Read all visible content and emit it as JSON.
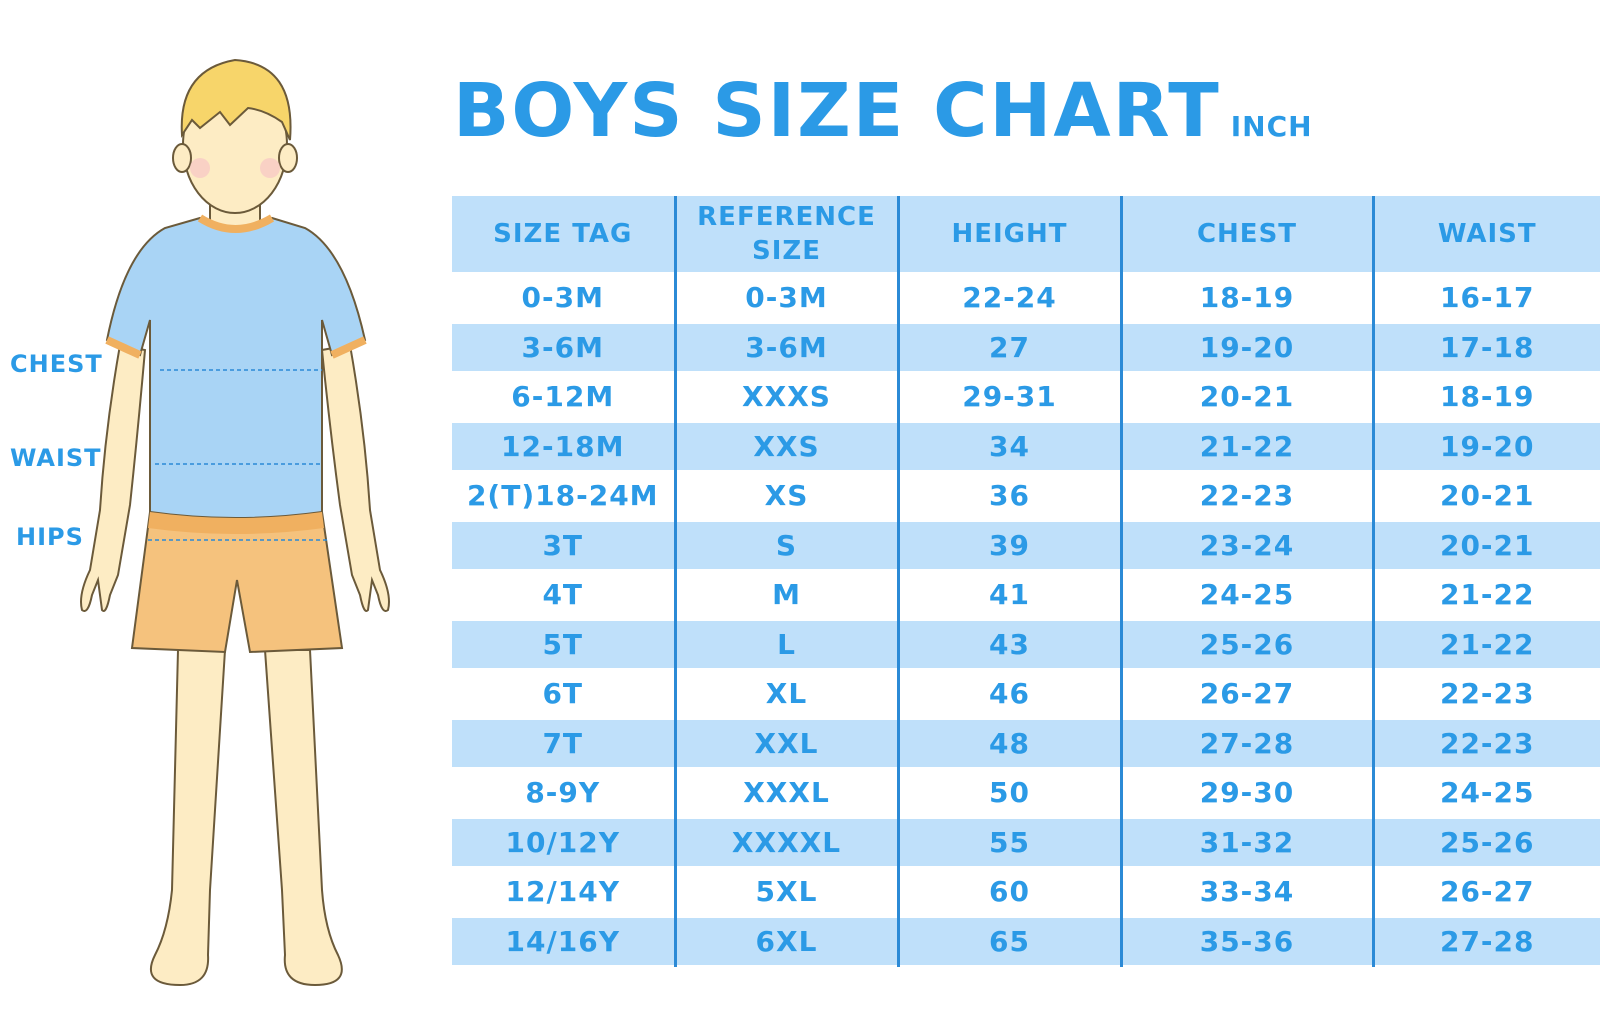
{
  "title": {
    "main": "BOYS SIZE CHART",
    "unit": "INCH"
  },
  "body_labels": {
    "chest": "CHEST",
    "waist": "WAIST",
    "hips": "HIPS"
  },
  "colors": {
    "accent": "#2b9ae6",
    "band": "#bfe0fa",
    "divider": "#2b8ad6",
    "shirt": "#a9d4f5",
    "shorts": "#f5c27d",
    "skin": "#fdecc4",
    "hair": "#f7d56a"
  },
  "table": {
    "headers": [
      "SIZE TAG",
      "REFERENCE SIZE",
      "HEIGHT",
      "CHEST",
      "WAIST"
    ],
    "rows": [
      [
        "0-3M",
        "0-3M",
        "22-24",
        "18-19",
        "16-17"
      ],
      [
        "3-6M",
        "3-6M",
        "27",
        "19-20",
        "17-18"
      ],
      [
        "6-12M",
        "XXXS",
        "29-31",
        "20-21",
        "18-19"
      ],
      [
        "12-18M",
        "XXS",
        "34",
        "21-22",
        "19-20"
      ],
      [
        "2(T)18-24M",
        "XS",
        "36",
        "22-23",
        "20-21"
      ],
      [
        "3T",
        "S",
        "39",
        "23-24",
        "20-21"
      ],
      [
        "4T",
        "M",
        "41",
        "24-25",
        "21-22"
      ],
      [
        "5T",
        "L",
        "43",
        "25-26",
        "21-22"
      ],
      [
        "6T",
        "XL",
        "46",
        "26-27",
        "22-23"
      ],
      [
        "7T",
        "XXL",
        "48",
        "27-28",
        "22-23"
      ],
      [
        "8-9Y",
        "XXXL",
        "50",
        "29-30",
        "24-25"
      ],
      [
        "10/12Y",
        "XXXXL",
        "55",
        "31-32",
        "25-26"
      ],
      [
        "12/14Y",
        "5XL",
        "60",
        "33-34",
        "26-27"
      ],
      [
        "14/16Y",
        "6XL",
        "65",
        "35-36",
        "27-28"
      ]
    ]
  }
}
